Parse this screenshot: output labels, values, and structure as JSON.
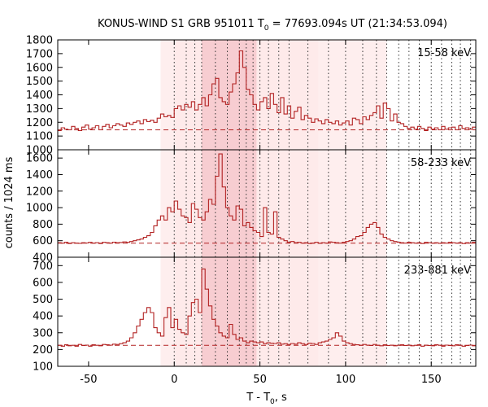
{
  "chart_data": {
    "type": "line",
    "title_prefix": "KONUS-WIND S1 GRB 951011 T",
    "title_sub": "0",
    "title_suffix": " = 77693.094s UT (21:34:53.094)",
    "xlabel_prefix": "T - T",
    "xlabel_sub": "0",
    "xlabel_suffix": ", s",
    "ylabel": "counts / 1024 ms",
    "xlim": [
      -68,
      176
    ],
    "x_ticks": [
      -50,
      0,
      50,
      100,
      150
    ],
    "x_tick_labels": [
      "-50",
      "0",
      "50",
      "100",
      "150"
    ],
    "colors": {
      "series": "#b22222",
      "shade_light": "#fde8e8",
      "shade_dark": "#f6c8cc",
      "axis": "#000000",
      "grid": "#333333"
    },
    "shaded_regions": [
      {
        "x0": -8,
        "x1": 124,
        "tone": "light"
      },
      {
        "x0": 0,
        "x1": 84,
        "tone": "light"
      },
      {
        "x0": 16,
        "x1": 48,
        "tone": "dark"
      }
    ],
    "dotted_lines_x": [
      0,
      7,
      12,
      16,
      24,
      31,
      38,
      42,
      46,
      50,
      55,
      61,
      67,
      78,
      90,
      100,
      110,
      118,
      124,
      131,
      137,
      143,
      150,
      156,
      162,
      167,
      173
    ],
    "panels": [
      {
        "label": "15-58 keV",
        "ylim": [
          1000,
          1800
        ],
        "y_ticks": [
          1000,
          1100,
          1200,
          1300,
          1400,
          1500,
          1600,
          1700,
          1800
        ],
        "y_tick_labels": [
          "1000",
          "1100",
          "1200",
          "1300",
          "1400",
          "1500",
          "1600",
          "1700",
          "1800"
        ],
        "background": 1145,
        "x_start": -68,
        "bin": 2,
        "values": [
          1140,
          1160,
          1150,
          1145,
          1170,
          1155,
          1140,
          1165,
          1180,
          1150,
          1160,
          1175,
          1145,
          1170,
          1185,
          1160,
          1175,
          1190,
          1180,
          1170,
          1195,
          1185,
          1200,
          1210,
          1190,
          1220,
          1205,
          1215,
          1200,
          1230,
          1260,
          1240,
          1250,
          1235,
          1300,
          1320,
          1290,
          1330,
          1310,
          1350,
          1290,
          1330,
          1380,
          1320,
          1400,
          1480,
          1520,
          1380,
          1350,
          1330,
          1420,
          1480,
          1560,
          1720,
          1600,
          1440,
          1400,
          1330,
          1290,
          1350,
          1380,
          1300,
          1410,
          1330,
          1270,
          1380,
          1260,
          1320,
          1230,
          1280,
          1310,
          1220,
          1250,
          1230,
          1200,
          1225,
          1210,
          1190,
          1220,
          1200,
          1190,
          1210,
          1180,
          1195,
          1210,
          1180,
          1230,
          1220,
          1190,
          1240,
          1220,
          1250,
          1270,
          1320,
          1230,
          1340,
          1300,
          1210,
          1260,
          1200,
          1190,
          1170,
          1155,
          1165,
          1150,
          1170,
          1155,
          1140,
          1165,
          1150,
          1160,
          1145,
          1170,
          1150,
          1160,
          1165,
          1145,
          1175,
          1155,
          1160,
          1150,
          1165
        ]
      },
      {
        "label": "58-233 keV",
        "ylim": [
          400,
          1700
        ],
        "y_ticks": [
          400,
          600,
          800,
          1000,
          1200,
          1400,
          1600
        ],
        "y_tick_labels": [
          "400",
          "600",
          "800",
          "1000",
          "1200",
          "1400",
          "1600"
        ],
        "background": 570,
        "x_start": -68,
        "bin": 2,
        "values": [
          575,
          570,
          580,
          565,
          575,
          570,
          568,
          575,
          572,
          580,
          570,
          575,
          565,
          580,
          575,
          570,
          582,
          575,
          578,
          585,
          580,
          590,
          600,
          610,
          620,
          640,
          660,
          700,
          780,
          850,
          900,
          850,
          1000,
          950,
          1080,
          980,
          900,
          880,
          820,
          1050,
          980,
          880,
          850,
          950,
          1100,
          1040,
          1380,
          1650,
          1250,
          1000,
          900,
          850,
          1020,
          980,
          780,
          820,
          760,
          720,
          700,
          650,
          1000,
          700,
          680,
          950,
          640,
          620,
          600,
          580,
          590,
          575,
          580,
          570,
          575,
          565,
          570,
          580,
          568,
          575,
          570,
          585,
          580,
          575,
          570,
          580,
          590,
          600,
          620,
          650,
          660,
          700,
          760,
          800,
          820,
          760,
          680,
          640,
          620,
          600,
          590,
          580,
          575,
          570,
          580,
          575,
          570,
          575,
          565,
          580,
          575,
          570,
          575,
          568,
          575,
          570,
          580,
          575,
          570,
          575,
          565,
          575,
          570,
          580
        ]
      },
      {
        "label": "233-881 keV",
        "ylim": [
          100,
          750
        ],
        "y_ticks": [
          100,
          200,
          300,
          400,
          500,
          600,
          700
        ],
        "y_tick_labels": [
          "100",
          "200",
          "300",
          "400",
          "500",
          "600",
          "700"
        ],
        "background": 225,
        "x_start": -68,
        "bin": 2,
        "values": [
          225,
          220,
          228,
          222,
          225,
          220,
          230,
          224,
          226,
          220,
          228,
          225,
          222,
          230,
          228,
          226,
          232,
          230,
          235,
          240,
          250,
          270,
          300,
          340,
          380,
          420,
          450,
          420,
          330,
          300,
          280,
          390,
          450,
          330,
          380,
          320,
          300,
          290,
          400,
          480,
          500,
          420,
          680,
          560,
          460,
          380,
          340,
          300,
          280,
          270,
          350,
          290,
          260,
          270,
          250,
          240,
          250,
          245,
          240,
          245,
          235,
          240,
          238,
          236,
          240,
          232,
          235,
          230,
          236,
          232,
          240,
          235,
          230,
          238,
          236,
          230,
          240,
          245,
          250,
          260,
          270,
          300,
          280,
          250,
          240,
          235,
          230,
          228,
          225,
          230,
          226,
          224,
          230,
          225,
          222,
          228,
          224,
          226,
          222,
          225,
          228,
          224,
          226,
          222,
          225,
          228,
          220,
          226,
          224,
          222,
          228,
          225,
          220,
          226,
          224,
          222,
          228,
          225,
          220,
          224,
          226,
          222
        ]
      }
    ]
  }
}
